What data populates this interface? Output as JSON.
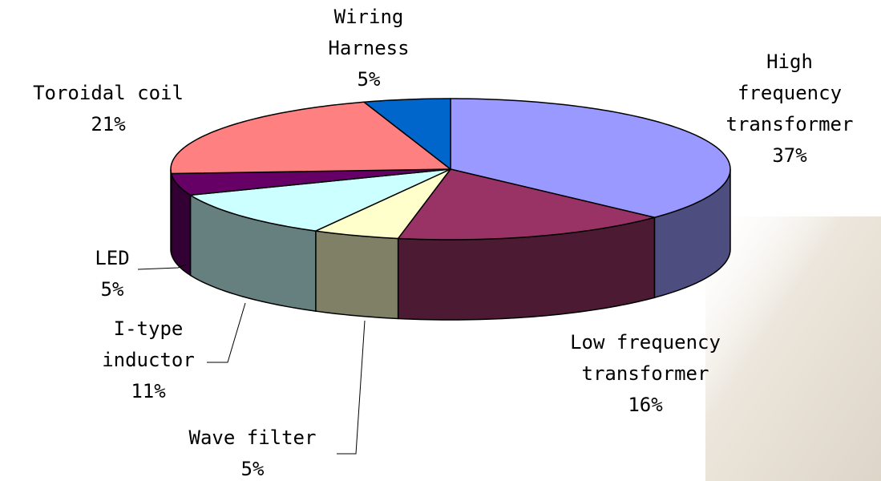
{
  "chart_data": {
    "type": "pie3d",
    "categories": [
      [
        "High",
        "frequency",
        "transformer"
      ],
      [
        "Low frequency",
        "transformer"
      ],
      [
        "Wave filter"
      ],
      [
        "I-type",
        "inductor"
      ],
      [
        "LED"
      ],
      [
        "Toroidal coil"
      ],
      [
        "Wiring",
        "Harness"
      ]
    ],
    "values": [
      37,
      16,
      5,
      11,
      5,
      21,
      5
    ],
    "value_labels": [
      "37%",
      "16%",
      "5%",
      "11%",
      "5%",
      "21%",
      "5%"
    ],
    "colors": [
      "#9999ff",
      "#993366",
      "#ffffcc",
      "#ccffff",
      "#660066",
      "#ff8080",
      "#0066cc"
    ]
  }
}
